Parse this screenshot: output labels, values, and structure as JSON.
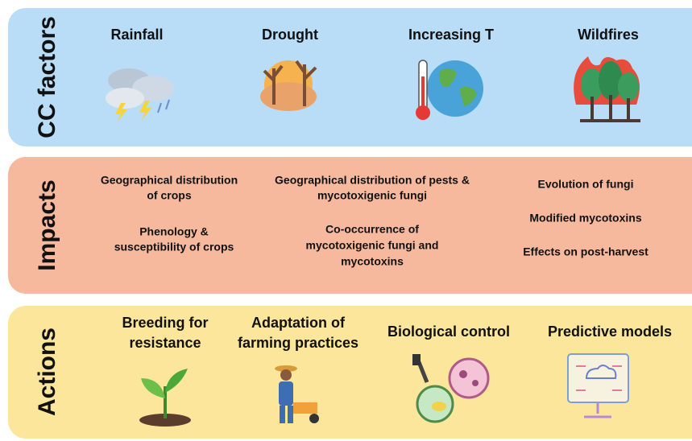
{
  "panels": [
    {
      "label": "CC factors",
      "items": [
        {
          "lines": [
            "Rainfall"
          ]
        },
        {
          "lines": [
            "Drought"
          ]
        },
        {
          "lines": [
            "Increasing T"
          ]
        },
        {
          "lines": [
            "Wildfires"
          ]
        }
      ]
    },
    {
      "label": "Impacts",
      "items": [
        {
          "lines": [
            "Geographical distribution",
            "of crops"
          ]
        },
        {
          "lines": [
            "Phenology &",
            "susceptibility of crops"
          ]
        },
        {
          "lines": [
            "Geographical distribution of pests &",
            "mycotoxigenic fungi"
          ]
        },
        {
          "lines": [
            "Co-occurrence of",
            "mycotoxigenic fungi and",
            "mycotoxins"
          ]
        },
        {
          "lines": [
            "Evolution of fungi"
          ]
        },
        {
          "lines": [
            "Modified mycotoxins"
          ]
        },
        {
          "lines": [
            "Effects on post-harvest"
          ]
        }
      ]
    },
    {
      "label": "Actions",
      "items": [
        {
          "lines": [
            "Breeding for",
            "resistance"
          ]
        },
        {
          "lines": [
            "Adaptation of",
            "farming practices"
          ]
        },
        {
          "lines": [
            "Biological control"
          ]
        },
        {
          "lines": [
            "Predictive models"
          ]
        }
      ]
    }
  ]
}
